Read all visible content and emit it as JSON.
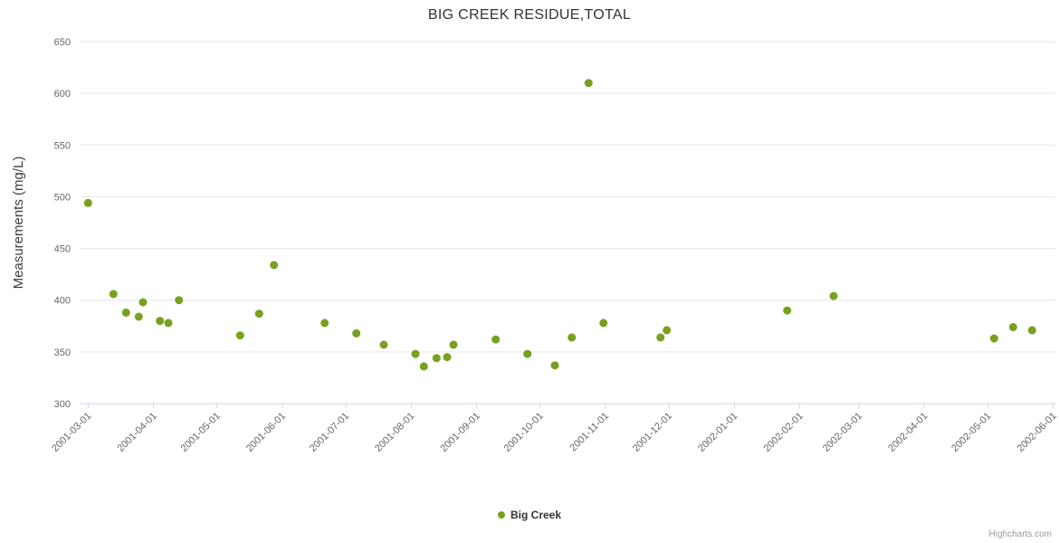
{
  "credits": "Highcharts.com",
  "chart_data": {
    "type": "scatter",
    "title": "BIG CREEK RESIDUE,TOTAL",
    "xlabel": "",
    "ylabel": "Measurements (mg/L)",
    "ylim": [
      300,
      650
    ],
    "y_ticks": [
      300,
      350,
      400,
      450,
      500,
      550,
      600,
      650
    ],
    "x_ticks": [
      "2001-03-01",
      "2001-04-01",
      "2001-05-01",
      "2001-06-01",
      "2001-07-01",
      "2001-08-01",
      "2001-09-01",
      "2001-10-01",
      "2001-11-01",
      "2001-12-01",
      "2002-01-01",
      "2002-02-01",
      "2002-03-01",
      "2002-04-01",
      "2002-05-01",
      "2002-06-01"
    ],
    "x_range": [
      "2001-02-25",
      "2002-06-02"
    ],
    "grid": true,
    "grid_color": "#e6e6e6",
    "axis_line_color": "#ccd6eb",
    "label_color": "#666666",
    "legend_position": "bottom-center",
    "series": [
      {
        "name": "Big Creek",
        "color": "#77a11e",
        "points": [
          [
            "2001-03-01",
            494
          ],
          [
            "2001-03-13",
            406
          ],
          [
            "2001-03-19",
            388
          ],
          [
            "2001-03-25",
            384
          ],
          [
            "2001-03-27",
            398
          ],
          [
            "2001-04-04",
            380
          ],
          [
            "2001-04-08",
            378
          ],
          [
            "2001-04-13",
            400
          ],
          [
            "2001-05-12",
            366
          ],
          [
            "2001-05-21",
            387
          ],
          [
            "2001-05-28",
            434
          ],
          [
            "2001-06-21",
            378
          ],
          [
            "2001-07-06",
            368
          ],
          [
            "2001-07-19",
            357
          ],
          [
            "2001-08-03",
            348
          ],
          [
            "2001-08-07",
            336
          ],
          [
            "2001-08-13",
            344
          ],
          [
            "2001-08-18",
            345
          ],
          [
            "2001-08-21",
            357
          ],
          [
            "2001-09-10",
            362
          ],
          [
            "2001-09-25",
            348
          ],
          [
            "2001-10-08",
            337
          ],
          [
            "2001-10-16",
            364
          ],
          [
            "2001-10-24",
            610
          ],
          [
            "2001-10-31",
            378
          ],
          [
            "2001-11-27",
            364
          ],
          [
            "2001-11-30",
            371
          ],
          [
            "2002-01-26",
            390
          ],
          [
            "2002-02-17",
            404
          ],
          [
            "2002-05-04",
            363
          ],
          [
            "2002-05-13",
            374
          ],
          [
            "2002-05-22",
            371
          ]
        ]
      }
    ]
  }
}
